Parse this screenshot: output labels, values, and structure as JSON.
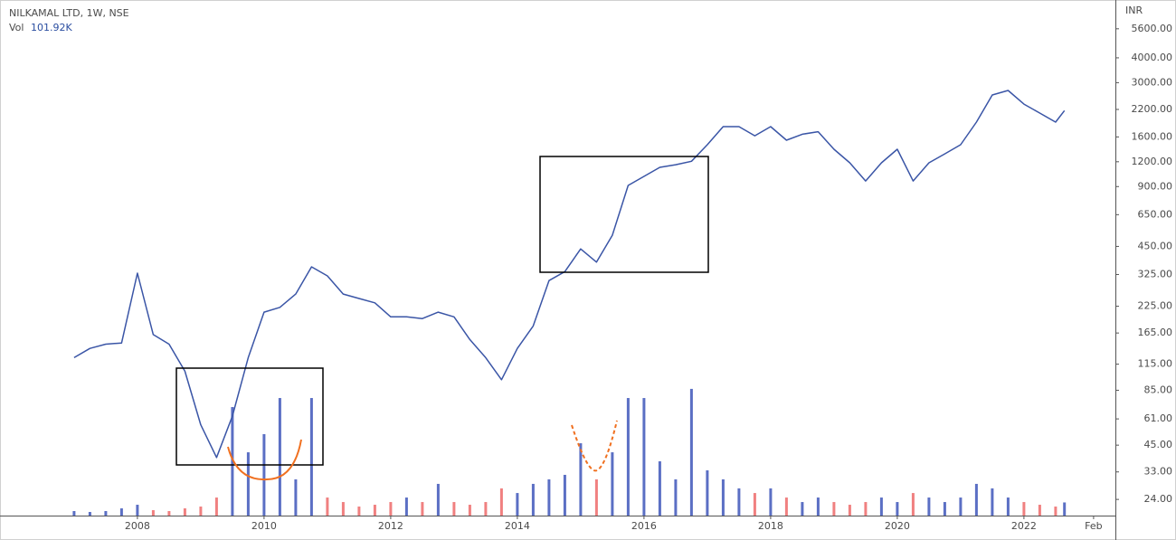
{
  "chart_data": {
    "type": "line",
    "title": "NILKAMAL LTD, 1W, NSE",
    "y_axis_label": "INR",
    "y_scale": "log",
    "grid": false,
    "x": [
      2007.0,
      2007.25,
      2007.5,
      2007.75,
      2008.0,
      2008.25,
      2008.5,
      2008.75,
      2009.0,
      2009.25,
      2009.5,
      2009.75,
      2010.0,
      2010.25,
      2010.5,
      2010.75,
      2011.0,
      2011.25,
      2011.5,
      2011.75,
      2012.0,
      2012.25,
      2012.5,
      2012.75,
      2013.0,
      2013.25,
      2013.5,
      2013.75,
      2014.0,
      2014.25,
      2014.5,
      2014.75,
      2015.0,
      2015.25,
      2015.5,
      2015.75,
      2016.0,
      2016.25,
      2016.5,
      2016.75,
      2017.0,
      2017.25,
      2017.5,
      2017.75,
      2018.0,
      2018.25,
      2018.5,
      2018.75,
      2019.0,
      2019.25,
      2019.5,
      2019.75,
      2020.0,
      2020.25,
      2020.5,
      2020.75,
      2021.0,
      2021.25,
      2021.5,
      2021.75,
      2022.0,
      2022.25,
      2022.5,
      2022.64
    ],
    "series": [
      {
        "color": "#3a55a6",
        "up_color": "#5b6fc4",
        "down_color": "#f08080",
        "values": [
          124,
          138,
          145,
          147,
          330,
          162,
          145,
          106,
          57,
          39,
          63,
          124,
          210,
          222,
          259,
          355,
          320,
          259,
          246,
          234,
          199,
          199,
          195,
          210,
          199,
          153,
          124,
          96,
          138,
          179,
          303,
          336,
          437,
          375,
          512,
          912,
          1013,
          1125,
          1160,
          1207,
          1461,
          1802,
          1802,
          1622,
          1802,
          1540,
          1650,
          1700,
          1387,
          1185,
          960,
          1185,
          1387,
          960,
          1185,
          1315,
          1461,
          1899,
          2600,
          2740,
          2340,
          2110,
          1899,
          2170
        ]
      },
      {
        "name": "Vol",
        "type": "bar",
        "axis": "y2",
        "last_value": "101.92K",
        "values": [
          35000,
          28000,
          35000,
          56000,
          84000,
          42000,
          35000,
          56000,
          70000,
          140000,
          842000,
          491000,
          632000,
          912000,
          281000,
          912000,
          140000,
          105000,
          70000,
          84000,
          105000,
          140000,
          105000,
          246000,
          105000,
          84000,
          105000,
          211000,
          175000,
          246000,
          281000,
          316000,
          561000,
          281000,
          491000,
          912000,
          912000,
          421000,
          281000,
          983000,
          351000,
          281000,
          211000,
          175000,
          211000,
          140000,
          105000,
          140000,
          105000,
          84000,
          105000,
          140000,
          105000,
          175000,
          140000,
          105000,
          140000,
          246000,
          211000,
          140000,
          105000,
          84000,
          70000,
          101920
        ]
      }
    ],
    "xlim": [
      2005.83,
      2023.43
    ],
    "xticks": [
      2008,
      2010,
      2012,
      2014,
      2016,
      2018,
      2020,
      2022,
      {
        "value": 2023.1,
        "label": "Feb"
      }
    ],
    "ylim": [
      19.9,
      7817
    ],
    "yticks": [
      {
        "value": 24,
        "label": "24.00"
      },
      {
        "value": 33,
        "label": "33.00"
      },
      {
        "value": 45,
        "label": "45.00"
      },
      {
        "value": 61,
        "label": "61.00"
      },
      {
        "value": 85,
        "label": "85.00"
      },
      {
        "value": 115,
        "label": "115.00"
      },
      {
        "value": 165,
        "label": "165.00"
      },
      {
        "value": 225,
        "label": "225.00"
      },
      {
        "value": 325,
        "label": "325.00"
      },
      {
        "value": 450,
        "label": "450.00"
      },
      {
        "value": 650,
        "label": "650.00"
      },
      {
        "value": 900,
        "label": "900.00"
      },
      {
        "value": 1200,
        "label": "1200.00"
      },
      {
        "value": 1600,
        "label": "1600.00"
      },
      {
        "value": 2200,
        "label": "2200.00"
      },
      {
        "value": 3000,
        "label": "3000.00"
      },
      {
        "value": 4000,
        "label": "4000.00"
      },
      {
        "value": 5600,
        "label": "5600.00"
      }
    ],
    "y2lim": [
      0,
      4000000
    ]
  }
}
